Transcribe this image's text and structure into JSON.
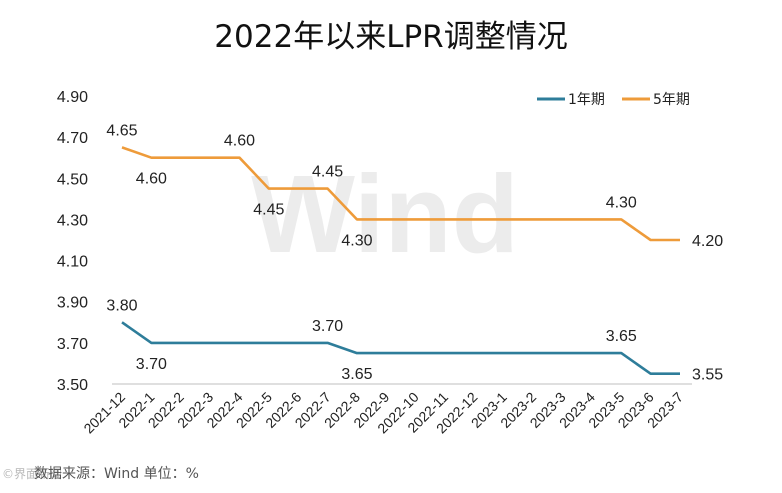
{
  "chart_data": {
    "type": "line",
    "title": "2022年以来LPR调整情况",
    "categories": [
      "2021-12",
      "2022-1",
      "2022-2",
      "2022-3",
      "2022-4",
      "2022-5",
      "2022-6",
      "2022-7",
      "2022-8",
      "2022-9",
      "2022-10",
      "2022-11",
      "2022-12",
      "2023-1",
      "2023-2",
      "2023-3",
      "2023-4",
      "2023-5",
      "2023-6",
      "2023-7"
    ],
    "series": [
      {
        "name": "1年期",
        "color": "#2e7d9a",
        "values": [
          3.8,
          3.7,
          3.7,
          3.7,
          3.7,
          3.7,
          3.7,
          3.7,
          3.65,
          3.65,
          3.65,
          3.65,
          3.65,
          3.65,
          3.65,
          3.65,
          3.65,
          3.65,
          3.55,
          3.55
        ]
      },
      {
        "name": "5年期",
        "color": "#ee9b3a",
        "values": [
          4.65,
          4.6,
          4.6,
          4.6,
          4.6,
          4.45,
          4.45,
          4.45,
          4.3,
          4.3,
          4.3,
          4.3,
          4.3,
          4.3,
          4.3,
          4.3,
          4.3,
          4.3,
          4.2,
          4.2
        ]
      }
    ],
    "yticks": [
      "3.50",
      "3.70",
      "3.90",
      "4.10",
      "4.30",
      "4.50",
      "4.70",
      "4.90"
    ],
    "ylim": [
      3.5,
      4.9
    ],
    "legend_position": "top-right",
    "grid": false,
    "data_labels": [
      {
        "series": 1,
        "index": 0,
        "text": "4.65",
        "placement": "above"
      },
      {
        "series": 1,
        "index": 1,
        "text": "4.60",
        "placement": "below"
      },
      {
        "series": 1,
        "index": 4,
        "text": "4.60",
        "placement": "above"
      },
      {
        "series": 1,
        "index": 5,
        "text": "4.45",
        "placement": "below"
      },
      {
        "series": 1,
        "index": 7,
        "text": "4.45",
        "placement": "above"
      },
      {
        "series": 1,
        "index": 8,
        "text": "4.30",
        "placement": "below"
      },
      {
        "series": 1,
        "index": 17,
        "text": "4.30",
        "placement": "above"
      },
      {
        "series": 1,
        "index": 19,
        "text": "4.20",
        "placement": "right"
      },
      {
        "series": 0,
        "index": 0,
        "text": "3.80",
        "placement": "above"
      },
      {
        "series": 0,
        "index": 1,
        "text": "3.70",
        "placement": "below"
      },
      {
        "series": 0,
        "index": 7,
        "text": "3.70",
        "placement": "above"
      },
      {
        "series": 0,
        "index": 8,
        "text": "3.65",
        "placement": "below"
      },
      {
        "series": 0,
        "index": 17,
        "text": "3.65",
        "placement": "above"
      },
      {
        "series": 0,
        "index": 19,
        "text": "3.55",
        "placement": "right"
      }
    ]
  },
  "watermark": "Wind",
  "source_note": "数据来源：Wind  单位：%",
  "corner_mark": "©界面新闻"
}
